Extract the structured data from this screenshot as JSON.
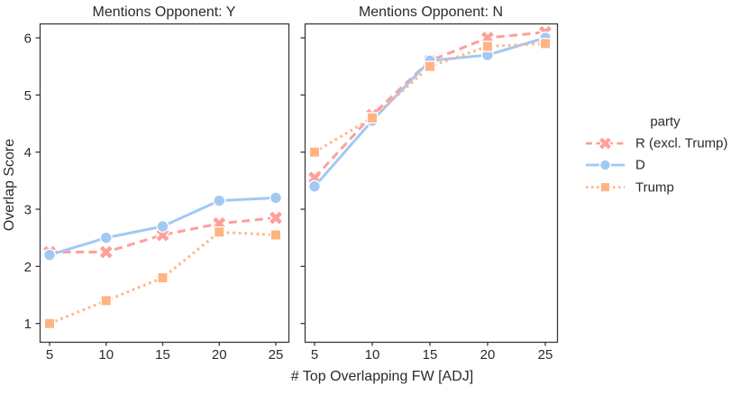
{
  "chart_data": {
    "type": "line",
    "title": "",
    "xlabel": "# Top Overlapping FW [ADJ]",
    "ylabel": "Overlap Score",
    "x": [
      5,
      10,
      15,
      20,
      25
    ],
    "x_ticks": [
      "5",
      "10",
      "15",
      "20",
      "25"
    ],
    "y_ticks": [
      "1",
      "2",
      "3",
      "4",
      "5",
      "6"
    ],
    "xlim": [
      4.1,
      26.2
    ],
    "ylim": [
      0.7,
      6.3
    ],
    "grid": false,
    "legend": {
      "title": "party",
      "position": "right-center"
    },
    "series_styles": [
      {
        "name": "R (excl. Trump)",
        "color": "#FF9F9B",
        "marker": "X",
        "linestyle": "dashed"
      },
      {
        "name": "D",
        "color": "#A1C9F4",
        "marker": "circle",
        "linestyle": "solid"
      },
      {
        "name": "Trump",
        "color": "#FFB482",
        "marker": "square",
        "linestyle": "dotted"
      }
    ],
    "panels": [
      {
        "title": "Mentions Opponent: Y",
        "series": [
          {
            "name": "R (excl. Trump)",
            "values": [
              2.25,
              2.25,
              2.55,
              2.75,
              2.85
            ]
          },
          {
            "name": "D",
            "values": [
              2.2,
              2.5,
              2.7,
              3.15,
              3.2
            ]
          },
          {
            "name": "Trump",
            "values": [
              1.0,
              1.4,
              1.8,
              2.6,
              2.55
            ]
          }
        ]
      },
      {
        "title": "Mentions Opponent: N",
        "series": [
          {
            "name": "R (excl. Trump)",
            "values": [
              3.55,
              4.65,
              5.6,
              6.0,
              6.1
            ]
          },
          {
            "name": "D",
            "values": [
              3.4,
              4.55,
              5.6,
              5.7,
              6.0
            ]
          },
          {
            "name": "Trump",
            "values": [
              4.0,
              4.6,
              5.5,
              5.85,
              5.9
            ]
          }
        ]
      }
    ],
    "text_color": "#2b2b2b",
    "axis_color": "#3a3a3a"
  }
}
